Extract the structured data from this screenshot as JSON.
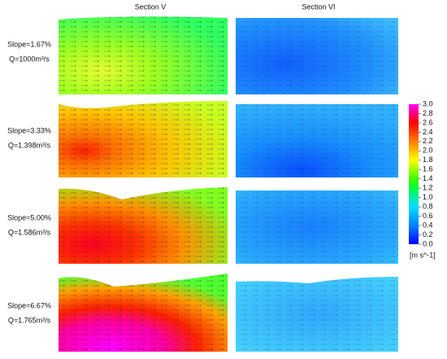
{
  "columns": [
    "Section V",
    "Section VI"
  ],
  "rows": [
    {
      "slope": "Slope=1.67%",
      "discharge": "Q=1000m³/s"
    },
    {
      "slope": "Slope=3.33%",
      "discharge": "Q=1.398m³/s"
    },
    {
      "slope": "Slope=5.00%",
      "discharge": "Q=1.586m³/s"
    },
    {
      "slope": "Slope=6.67%",
      "discharge": "Q=1.765m³/s"
    }
  ],
  "colorbar": {
    "ticks": [
      {
        "value": 0,
        "label": "0.0"
      },
      0.2,
      0.4,
      0.6,
      0.8,
      {
        "value": 1,
        "label": "1.0"
      },
      1.2,
      1.4,
      1.6,
      1.8,
      {
        "value": 2,
        "label": "2.0"
      },
      2.2,
      2.4,
      2.6,
      2.8,
      {
        "value": 3,
        "label": "3.0"
      }
    ],
    "unit": "[m s^-1]"
  }
}
